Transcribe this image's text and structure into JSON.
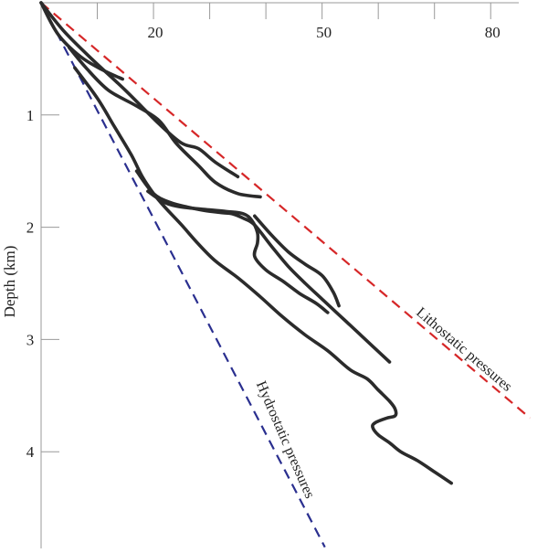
{
  "chart_data": {
    "type": "line",
    "title": "",
    "xlabel": "",
    "ylabel": "Depth (km)",
    "x_ticks_labeled": [
      20,
      50,
      80
    ],
    "x_ticks_minor": [
      10,
      30,
      40,
      60,
      70
    ],
    "xlim": [
      0,
      85
    ],
    "y_ticks": [
      1,
      2,
      3,
      4
    ],
    "ylim": [
      0,
      4.85
    ],
    "y_inverted": true,
    "x_axis_position": "top",
    "grid": false,
    "reference_lines": [
      {
        "name": "Lithostatic pressures",
        "color": "#d62728",
        "style": "dashed",
        "x": [
          0,
          87
        ],
        "y": [
          0,
          3.7
        ]
      },
      {
        "name": "Hydrostatic pressures",
        "color": "#2a2f8f",
        "style": "dashed",
        "x": [
          0,
          50.5
        ],
        "y": [
          0,
          4.85
        ]
      }
    ],
    "series_color": "#2b2b2b",
    "series": [
      {
        "x": [
          0,
          3,
          7,
          11,
          14.5
        ],
        "y": [
          0,
          0.28,
          0.48,
          0.6,
          0.68
        ]
      },
      {
        "x": [
          0,
          4,
          9,
          15,
          21,
          25,
          28,
          31,
          35
        ],
        "y": [
          0,
          0.25,
          0.5,
          0.78,
          1.08,
          1.25,
          1.3,
          1.42,
          1.55
        ]
      },
      {
        "x": [
          5,
          8,
          12,
          17,
          21,
          24,
          28,
          31,
          35,
          39
        ],
        "y": [
          0.4,
          0.58,
          0.78,
          0.92,
          1.05,
          1.25,
          1.45,
          1.6,
          1.7,
          1.73
        ]
      },
      {
        "x": [
          6,
          10,
          13,
          16,
          18,
          20,
          22,
          25,
          28,
          31,
          35,
          39,
          43,
          47,
          51,
          55,
          58,
          60,
          62,
          63,
          63,
          61.5,
          59.5,
          59,
          60,
          62,
          64,
          67,
          70,
          73
        ],
        "y": [
          0.58,
          0.85,
          1.1,
          1.35,
          1.55,
          1.7,
          1.82,
          1.98,
          2.15,
          2.3,
          2.45,
          2.62,
          2.8,
          2.96,
          3.1,
          3.27,
          3.35,
          3.45,
          3.55,
          3.62,
          3.68,
          3.7,
          3.74,
          3.78,
          3.85,
          3.92,
          4.0,
          4.08,
          4.18,
          4.28
        ]
      },
      {
        "x": [
          17,
          20,
          23,
          26,
          29,
          32,
          34,
          36,
          38,
          41,
          44,
          47,
          50,
          53,
          56,
          59,
          62
        ],
        "y": [
          1.5,
          1.7,
          1.78,
          1.82,
          1.85,
          1.87,
          1.88,
          1.92,
          1.98,
          2.17,
          2.35,
          2.5,
          2.64,
          2.78,
          2.92,
          3.06,
          3.2
        ]
      },
      {
        "x": [
          19,
          22,
          25,
          29,
          33,
          36,
          37.5,
          38.5,
          38.5,
          38,
          40,
          43,
          46,
          49,
          51
        ],
        "y": [
          1.68,
          1.78,
          1.82,
          1.84,
          1.86,
          1.88,
          1.94,
          2.05,
          2.14,
          2.26,
          2.38,
          2.48,
          2.59,
          2.68,
          2.76
        ]
      },
      {
        "x": [
          38,
          41,
          44,
          47,
          50,
          52,
          53
        ],
        "y": [
          1.9,
          2.07,
          2.22,
          2.33,
          2.43,
          2.58,
          2.7
        ]
      }
    ]
  }
}
